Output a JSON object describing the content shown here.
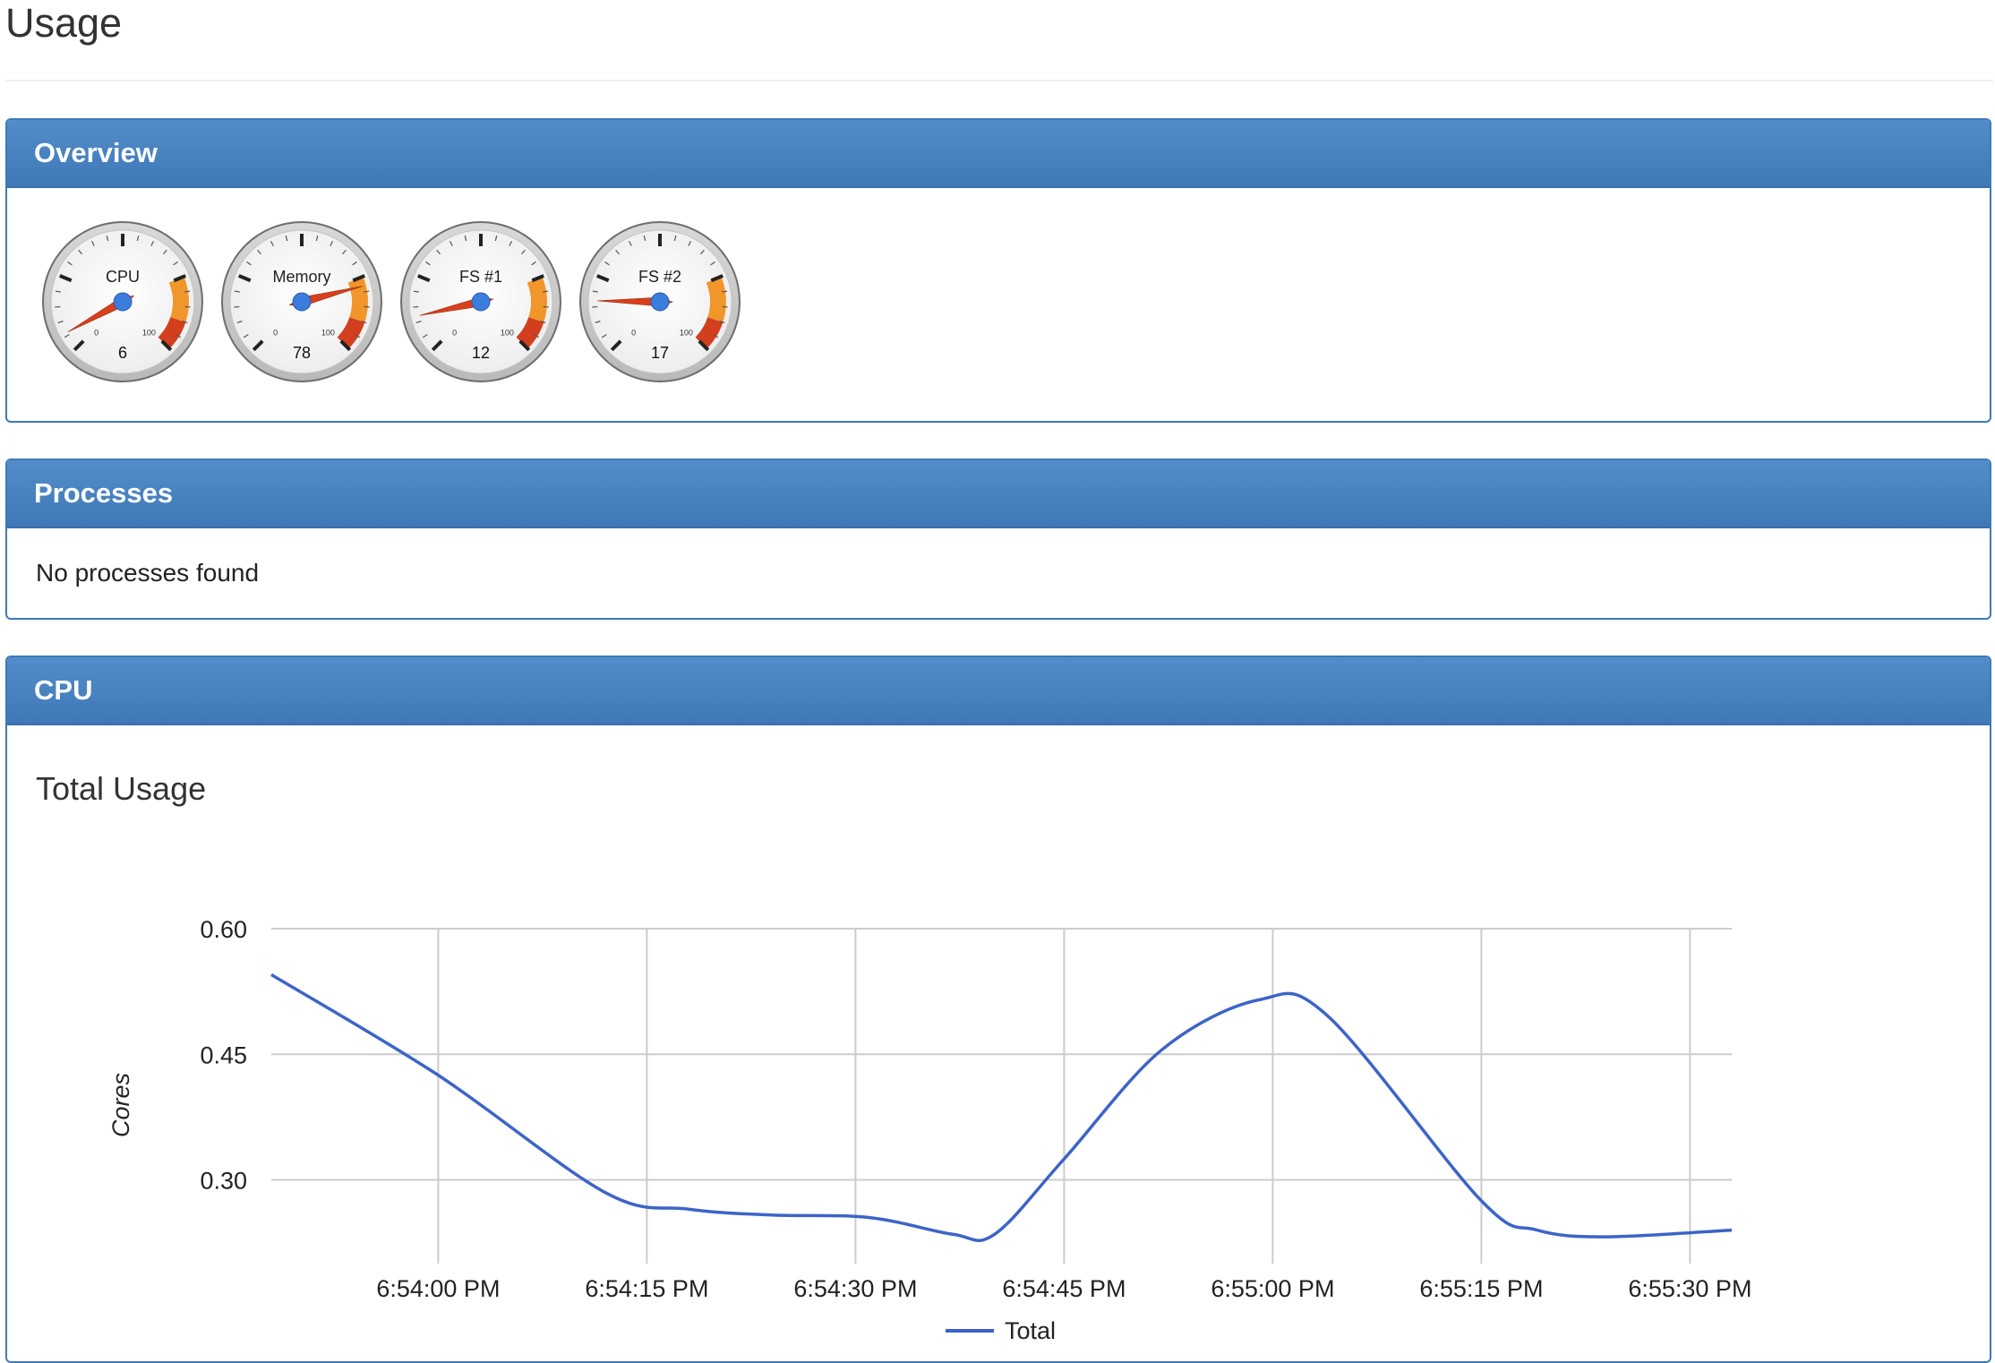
{
  "page": {
    "title": "Usage"
  },
  "overview": {
    "title": "Overview",
    "gauges": [
      {
        "label": "CPU",
        "value": 6,
        "min": 0,
        "max": 100
      },
      {
        "label": "Memory",
        "value": 78,
        "min": 0,
        "max": 100
      },
      {
        "label": "FS #1",
        "value": 12,
        "min": 0,
        "max": 100
      },
      {
        "label": "FS #2",
        "value": 17,
        "min": 0,
        "max": 100
      }
    ],
    "colors": {
      "needle": "#d8401c",
      "hub": "#3b7ddd",
      "zone_warn": "#f0962a",
      "zone_crit": "#d23f1e"
    }
  },
  "processes": {
    "title": "Processes",
    "empty_message": "No processes found"
  },
  "cpu": {
    "title": "CPU",
    "chart_title": "Total Usage",
    "chart_data": {
      "type": "line",
      "title": "Total Usage",
      "xlabel": "",
      "ylabel": "Cores",
      "ylim": [
        0.2,
        0.6
      ],
      "yticks": [
        "0.60",
        "0.45",
        "0.30"
      ],
      "ytick_values": [
        0.6,
        0.45,
        0.3
      ],
      "xlim": [
        "6:53:48 PM",
        "6:55:33 PM"
      ],
      "xticks": [
        "6:54:00 PM",
        "6:54:15 PM",
        "6:54:30 PM",
        "6:54:45 PM",
        "6:55:00 PM",
        "6:55:15 PM",
        "6:55:30 PM"
      ],
      "grid": true,
      "legend": "bottom",
      "series": [
        {
          "name": "Total",
          "color": "#3c64c8",
          "points": [
            [
              "6:53:48 PM",
              0.545
            ],
            [
              "6:54:00 PM",
              0.425
            ],
            [
              "6:54:12 PM",
              0.285
            ],
            [
              "6:54:18 PM",
              0.265
            ],
            [
              "6:54:24 PM",
              0.258
            ],
            [
              "6:54:31 PM",
              0.255
            ],
            [
              "6:54:37 PM",
              0.235
            ],
            [
              "6:54:40 PM",
              0.235
            ],
            [
              "6:54:45 PM",
              0.325
            ],
            [
              "6:54:52 PM",
              0.455
            ],
            [
              "6:54:59 PM",
              0.515
            ],
            [
              "6:55:04 PM",
              0.495
            ],
            [
              "6:55:15 PM",
              0.275
            ],
            [
              "6:55:19 PM",
              0.24
            ],
            [
              "6:55:24 PM",
              0.232
            ],
            [
              "6:55:33 PM",
              0.24
            ]
          ]
        }
      ]
    }
  }
}
